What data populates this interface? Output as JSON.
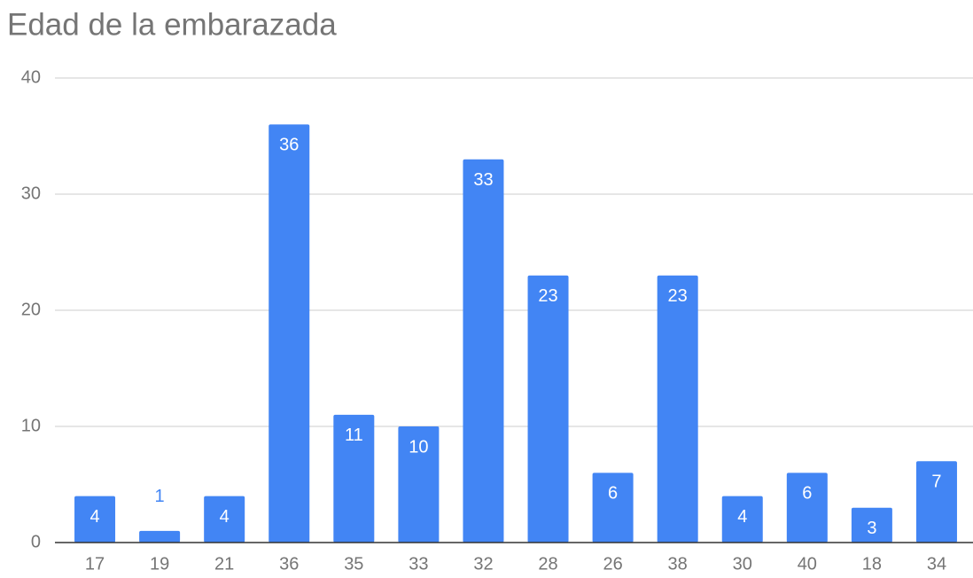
{
  "chart_data": {
    "type": "bar",
    "title": "Edad de la embarazada",
    "categories": [
      "17",
      "19",
      "21",
      "36",
      "35",
      "33",
      "32",
      "28",
      "26",
      "38",
      "30",
      "40",
      "18",
      "34"
    ],
    "values": [
      4,
      1,
      4,
      36,
      11,
      10,
      33,
      23,
      6,
      23,
      4,
      6,
      3,
      7
    ],
    "color": "#4285f4",
    "ylim": [
      0,
      40
    ],
    "yticks": [
      0,
      10,
      20,
      30,
      40
    ],
    "grid": true
  }
}
